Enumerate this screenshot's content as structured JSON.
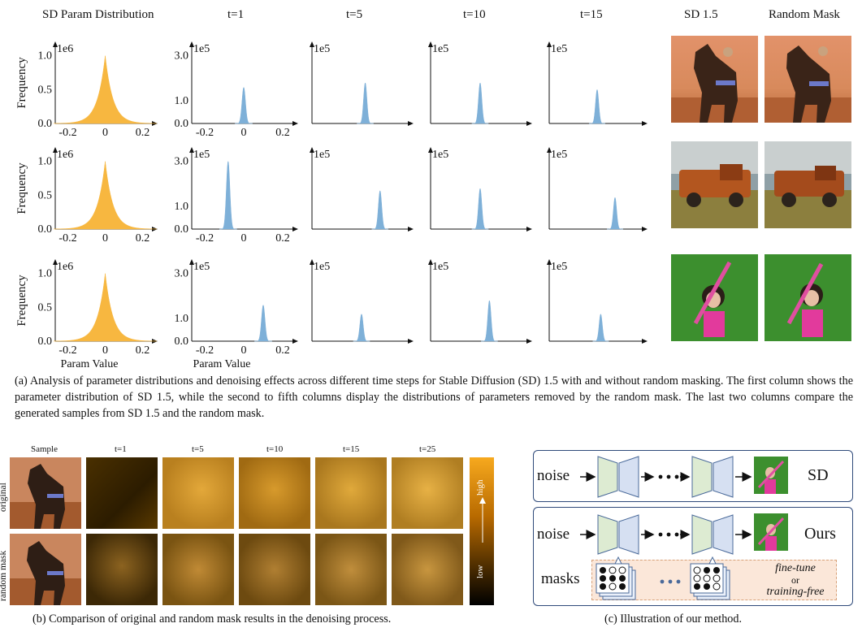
{
  "panel_a": {
    "column_headers": [
      "SD Param Distribution",
      "t=1",
      "t=5",
      "t=10",
      "t=15",
      "SD 1.5",
      "Random Mask"
    ],
    "ylabel": "Frequency",
    "xlabel": "Param Value",
    "scale_1e6": "1e6",
    "scale_1e5": "1e5",
    "caption": "(a) Analysis of parameter distributions and denoising effects across different time steps for Stable Diffusion (SD) 1.5 with and without random masking. The first column shows the parameter distribution of SD 1.5, while the second to fifth columns display the distributions of parameters removed by the random mask. The last two columns compare the generated samples from SD 1.5 and the random mask."
  },
  "chart_data": [
    {
      "type": "area",
      "label": "row1-sd-param",
      "color": "#F7B740",
      "xlim": [
        -0.25,
        0.25
      ],
      "ylim": [
        0,
        1.2
      ],
      "yticks": [
        "1.0",
        "0.5",
        "0.0"
      ],
      "xticks": [
        "-0.2",
        "0",
        "0.2"
      ],
      "peak_x": 0.0,
      "peak_y": 1.0,
      "scale": "1e6"
    },
    {
      "type": "area",
      "label": "row1-t1",
      "color": "#7EB0D8",
      "xlim": [
        -0.25,
        0.25
      ],
      "ylim": [
        0,
        3.6
      ],
      "yticks": [
        "3.0",
        "1.0",
        "0.0"
      ],
      "xticks": [
        "-0.2",
        "0",
        "0.2"
      ],
      "peak_x": 0.0,
      "peak_y": 1.6,
      "scale": "1e5"
    },
    {
      "type": "area",
      "label": "row1-t5",
      "color": "#7EB0D8",
      "peak_x": 0.02,
      "peak_y": 1.8,
      "scale": "1e5"
    },
    {
      "type": "area",
      "label": "row1-t10",
      "color": "#7EB0D8",
      "peak_x": 0.0,
      "peak_y": 1.8,
      "scale": "1e5"
    },
    {
      "type": "area",
      "label": "row1-t15",
      "color": "#7EB0D8",
      "peak_x": 0.0,
      "peak_y": 1.5,
      "scale": "1e5"
    },
    {
      "type": "area",
      "label": "row2-sd-param",
      "color": "#F7B740",
      "xlim": [
        -0.25,
        0.25
      ],
      "ylim": [
        0,
        1.2
      ],
      "yticks": [
        "1.0",
        "0.5",
        "0.0"
      ],
      "xticks": [
        "-0.2",
        "0",
        "0.2"
      ],
      "peak_x": 0.0,
      "peak_y": 1.0,
      "scale": "1e6"
    },
    {
      "type": "area",
      "label": "row2-t1",
      "color": "#7EB0D8",
      "xlim": [
        -0.25,
        0.25
      ],
      "ylim": [
        0,
        3.6
      ],
      "yticks": [
        "3.0",
        "1.0",
        "0.0"
      ],
      "xticks": [
        "-0.2",
        "0",
        "0.2"
      ],
      "peak_x": -0.08,
      "peak_y": 3.0,
      "scale": "1e5"
    },
    {
      "type": "area",
      "label": "row2-t5",
      "color": "#7EB0D8",
      "peak_x": 0.1,
      "peak_y": 1.7,
      "scale": "1e5"
    },
    {
      "type": "area",
      "label": "row2-t10",
      "color": "#7EB0D8",
      "peak_x": 0.0,
      "peak_y": 1.8,
      "scale": "1e5"
    },
    {
      "type": "area",
      "label": "row2-t15",
      "color": "#7EB0D8",
      "peak_x": 0.1,
      "peak_y": 1.4,
      "scale": "1e5"
    },
    {
      "type": "area",
      "label": "row3-sd-param",
      "color": "#F7B740",
      "xlim": [
        -0.25,
        0.25
      ],
      "ylim": [
        0,
        1.2
      ],
      "yticks": [
        "1.0",
        "0.5",
        "0.0"
      ],
      "xticks": [
        "-0.2",
        "0",
        "0.2"
      ],
      "peak_x": 0.0,
      "peak_y": 1.0,
      "scale": "1e6"
    },
    {
      "type": "area",
      "label": "row3-t1",
      "color": "#7EB0D8",
      "xlim": [
        -0.25,
        0.25
      ],
      "ylim": [
        0,
        3.6
      ],
      "yticks": [
        "3.0",
        "1.0",
        "0.0"
      ],
      "xticks": [
        "-0.2",
        "0",
        "0.2"
      ],
      "peak_x": 0.1,
      "peak_y": 1.6,
      "scale": "1e5"
    },
    {
      "type": "area",
      "label": "row3-t5",
      "color": "#7EB0D8",
      "peak_x": 0.0,
      "peak_y": 1.2,
      "scale": "1e5"
    },
    {
      "type": "area",
      "label": "row3-t10",
      "color": "#7EB0D8",
      "peak_x": 0.05,
      "peak_y": 1.8,
      "scale": "1e5"
    },
    {
      "type": "area",
      "label": "row3-t15",
      "color": "#7EB0D8",
      "peak_x": 0.02,
      "peak_y": 1.2,
      "scale": "1e5"
    }
  ],
  "panel_b": {
    "headers": [
      "Sample",
      "t=1",
      "t=5",
      "t=10",
      "t=15",
      "t=25"
    ],
    "row_labels": [
      "original",
      "random mask"
    ],
    "colorbar_high": "high",
    "colorbar_low": "low",
    "caption": "(b) Comparison of original and random mask results in the denoising process."
  },
  "panel_c": {
    "sd_row": {
      "noise": "noise",
      "label": "SD"
    },
    "ours_row": {
      "noise": "noise",
      "label": "Ours",
      "masks": "masks",
      "fine_tune": "fine-tune",
      "or": "or",
      "training_free": "training-free"
    },
    "caption": "(c) Illustration of our method."
  },
  "colors": {
    "orange_hist": "#F7B740",
    "blue_hist": "#7EB0D8",
    "unet_green": "#DDEBD2",
    "unet_blue": "#D6E0F2",
    "box_border": "#2F4A7A",
    "mask_bg": "#FBE7D9"
  }
}
